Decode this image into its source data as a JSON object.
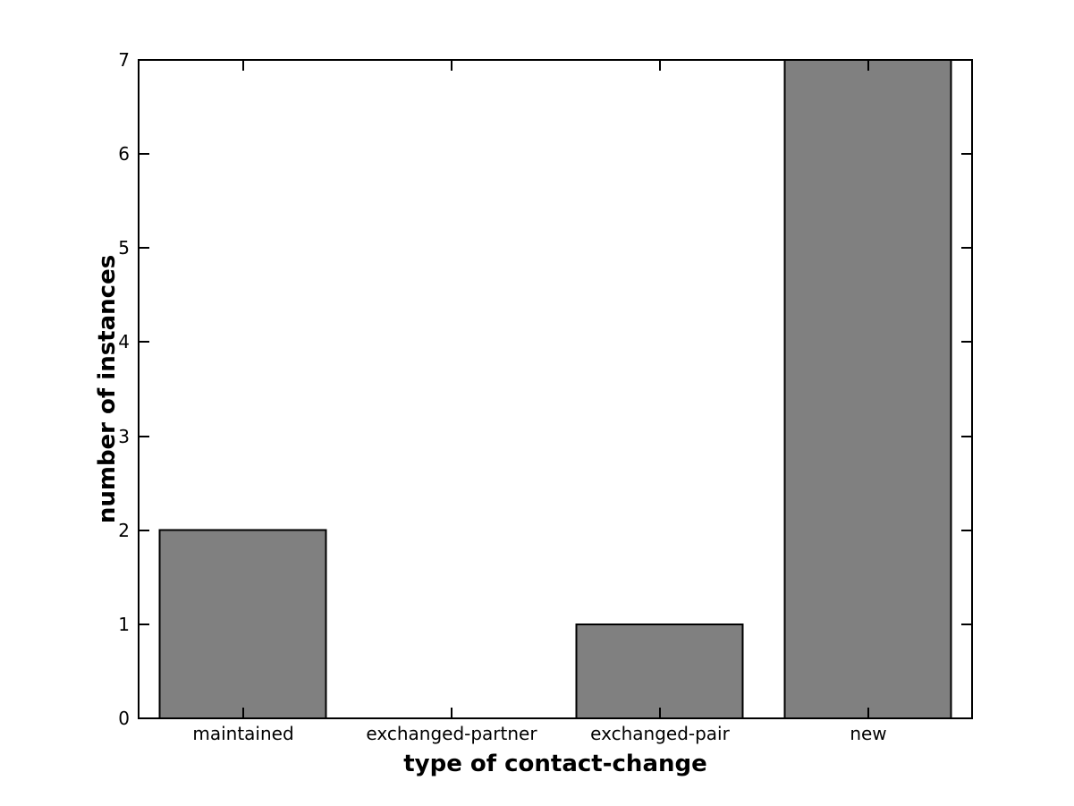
{
  "chart_data": {
    "type": "bar",
    "categories": [
      "maintained",
      "exchanged-partner",
      "exchanged-pair",
      "new"
    ],
    "values": [
      2,
      0,
      1,
      7
    ],
    "title": "",
    "xlabel": "type of contact-change",
    "ylabel": "number of instances",
    "ylim": [
      0,
      7
    ],
    "yticks": [
      0,
      1,
      2,
      3,
      4,
      5,
      6,
      7
    ],
    "bar_color": "#808080",
    "bar_edge_color": "#000000",
    "axis_color": "#000000",
    "background_color": "#ffffff",
    "bar_width_fraction": 0.8,
    "grid": false,
    "legend": null,
    "box": true,
    "tick_direction": "in"
  }
}
